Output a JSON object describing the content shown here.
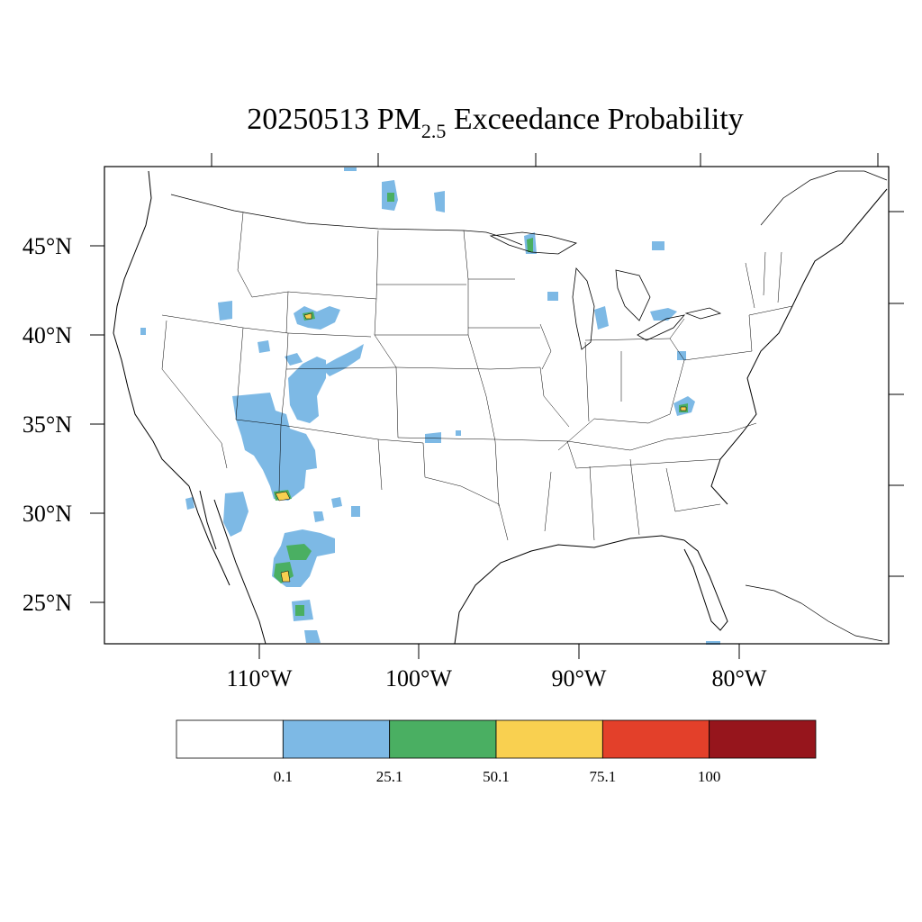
{
  "title": {
    "prefix": "20250513 PM",
    "subscript": "2.5",
    "suffix": " Exceedance Probability"
  },
  "map": {
    "lat_labels": [
      "45°N",
      "40°N",
      "35°N",
      "30°N",
      "25°N"
    ],
    "lon_labels": [
      "110°W",
      "100°W",
      "90°W",
      "80°W"
    ]
  },
  "colorbar": {
    "colors": [
      "#ffffff",
      "#7db9e5",
      "#4aaf62",
      "#f9d050",
      "#e3402a",
      "#96151c"
    ],
    "tick_labels": [
      "0.1",
      "25.1",
      "50.1",
      "75.1",
      "100"
    ]
  },
  "legend_colors": {
    "low": "#7db9e5",
    "mid": "#4aaf62",
    "high": "#f9d050",
    "line": "#000000"
  }
}
